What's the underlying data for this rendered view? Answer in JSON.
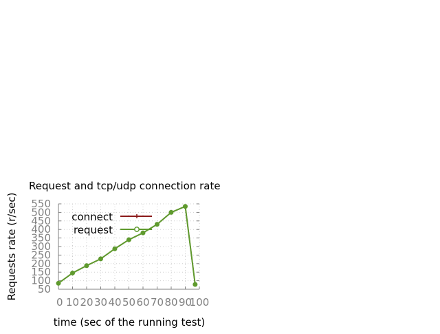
{
  "chart_data": {
    "type": "line",
    "title": "Request and tcp/udp connection rate",
    "xlabel": "time (sec of the running test)",
    "ylabel": "Requests rate (r/sec)",
    "xlim": [
      0,
      100
    ],
    "ylim": [
      50,
      550
    ],
    "x_ticks": [
      "0",
      "10",
      "20",
      "30",
      "40",
      "50",
      "60",
      "70",
      "80",
      "90",
      "100"
    ],
    "y_ticks": [
      "50",
      "100",
      "150",
      "200",
      "250",
      "300",
      "350",
      "400",
      "450",
      "500",
      "550"
    ],
    "grid": true,
    "legend_position": "top-left",
    "x": [
      0,
      10,
      20,
      30,
      40,
      50,
      60,
      70,
      80,
      90,
      97
    ],
    "series": [
      {
        "name": "connect",
        "color": "#8b1a1a",
        "marker": "plus",
        "values": [
          85,
          145,
          188,
          228,
          287,
          340,
          380,
          430,
          500,
          535,
          78
        ]
      },
      {
        "name": "request",
        "color": "#5f9a2e",
        "marker": "circle",
        "values": [
          85,
          145,
          188,
          228,
          287,
          340,
          380,
          430,
          500,
          535,
          78
        ]
      }
    ]
  }
}
